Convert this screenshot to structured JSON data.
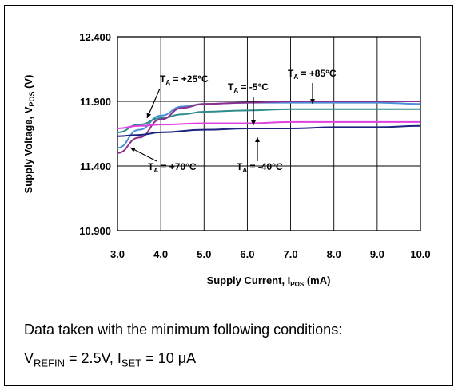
{
  "chart_data": {
    "type": "line",
    "xlabel_main": "Supply Current, I",
    "xlabel_sub": "POS",
    "xlabel_unit": " (mA)",
    "ylabel_main": "Supply Voltage, V",
    "ylabel_sub": "POS",
    "ylabel_unit": " (V)",
    "xlim": [
      3.0,
      10.0
    ],
    "ylim": [
      10.9,
      12.4
    ],
    "x_ticks": [
      "3.0",
      "4.0",
      "5.0",
      "6.0",
      "7.0",
      "8.0",
      "9.0",
      "10.0"
    ],
    "y_ticks": [
      "10.900",
      "11.400",
      "11.900",
      "12.400"
    ],
    "grid": true,
    "series": [
      {
        "name": "T_A = +25°C",
        "color": "#4a8fd6",
        "x": [
          3.0,
          3.5,
          4.0,
          4.5,
          5.0,
          6.0,
          7.0,
          8.0,
          9.0,
          10.0
        ],
        "y": [
          11.54,
          11.68,
          11.79,
          11.86,
          11.88,
          11.89,
          11.89,
          11.89,
          11.89,
          11.88
        ]
      },
      {
        "name": "T_A = -5°C",
        "color": "#2e8b8b",
        "x": [
          3.0,
          3.5,
          4.0,
          4.5,
          5.0,
          6.0,
          7.0,
          8.0,
          9.0,
          10.0
        ],
        "y": [
          11.66,
          11.72,
          11.77,
          11.8,
          11.82,
          11.83,
          11.84,
          11.84,
          11.84,
          11.84
        ]
      },
      {
        "name": "T_A = +85°C",
        "color": "#8b2f8f",
        "x": [
          3.0,
          3.5,
          4.0,
          4.5,
          5.0,
          6.0,
          7.0,
          8.0,
          9.0,
          10.0
        ],
        "y": [
          11.5,
          11.62,
          11.76,
          11.85,
          11.88,
          11.89,
          11.9,
          11.9,
          11.9,
          11.9
        ]
      },
      {
        "name": "T_A = -40°C",
        "color": "#e040e0",
        "x": [
          3.0,
          3.5,
          4.0,
          5.0,
          6.0,
          7.0,
          8.0,
          9.0,
          10.0
        ],
        "y": [
          11.69,
          11.71,
          11.72,
          11.73,
          11.73,
          11.74,
          11.74,
          11.74,
          11.74
        ]
      },
      {
        "name": "T_A = +70°C",
        "color": "#1a237e",
        "x": [
          3.0,
          3.5,
          4.0,
          5.0,
          6.0,
          7.0,
          8.0,
          9.0,
          10.0
        ],
        "y": [
          11.63,
          11.64,
          11.66,
          11.68,
          11.69,
          11.69,
          11.7,
          11.7,
          11.71
        ]
      }
    ],
    "annotations": [
      {
        "main": "T",
        "sub": "A",
        "rest": " = +25°C"
      },
      {
        "main": "T",
        "sub": "A",
        "rest": " = -5°C"
      },
      {
        "main": "T",
        "sub": "A",
        "rest": " = +85°C"
      },
      {
        "main": "T",
        "sub": "A",
        "rest": " = +70°C"
      },
      {
        "main": "T",
        "sub": "A",
        "rest": " = -40°C"
      }
    ]
  },
  "caption": {
    "line1": "Data taken with the minimum following conditions:",
    "vrefin_main": "V",
    "vrefin_sub": "REFIN",
    "vrefin_rest": " = 2.5V, I",
    "iset_sub": "SET",
    "iset_rest": " = 10 μA"
  }
}
